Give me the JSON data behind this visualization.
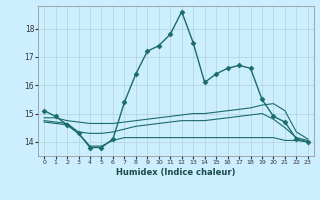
{
  "xlabel": "Humidex (Indice chaleur)",
  "bg_color": "#cceeff",
  "grid_color": "#b0d4d4",
  "line_color": "#1a6b6b",
  "xlim": [
    -0.5,
    23.5
  ],
  "ylim": [
    13.5,
    18.8
  ],
  "yticks": [
    14,
    15,
    16,
    17,
    18
  ],
  "xticks": [
    0,
    1,
    2,
    3,
    4,
    5,
    6,
    7,
    8,
    9,
    10,
    11,
    12,
    13,
    14,
    15,
    16,
    17,
    18,
    19,
    20,
    21,
    22,
    23
  ],
  "series": [
    {
      "x": [
        0,
        1,
        2,
        3,
        4,
        5,
        6,
        7,
        8,
        9,
        10,
        11,
        12,
        13,
        14,
        15,
        16,
        17,
        18,
        19,
        20,
        21,
        22,
        23
      ],
      "y": [
        15.1,
        14.9,
        14.6,
        14.3,
        13.8,
        13.8,
        14.1,
        15.4,
        16.4,
        17.2,
        17.4,
        17.8,
        18.6,
        17.5,
        16.1,
        16.4,
        16.6,
        16.7,
        16.6,
        15.5,
        14.9,
        14.7,
        14.1,
        14.0
      ],
      "marker": "D",
      "markersize": 2.5,
      "linewidth": 1.0
    },
    {
      "x": [
        0,
        1,
        2,
        3,
        4,
        5,
        6,
        7,
        8,
        9,
        10,
        11,
        12,
        13,
        14,
        15,
        16,
        17,
        18,
        19,
        20,
        21,
        22,
        23
      ],
      "y": [
        14.85,
        14.85,
        14.75,
        14.7,
        14.65,
        14.65,
        14.65,
        14.7,
        14.75,
        14.8,
        14.85,
        14.9,
        14.95,
        15.0,
        15.0,
        15.05,
        15.1,
        15.15,
        15.2,
        15.3,
        15.35,
        15.1,
        14.35,
        14.1
      ],
      "marker": null,
      "markersize": 0,
      "linewidth": 0.8
    },
    {
      "x": [
        0,
        1,
        2,
        3,
        4,
        5,
        6,
        7,
        8,
        9,
        10,
        11,
        12,
        13,
        14,
        15,
        16,
        17,
        18,
        19,
        20,
        21,
        22,
        23
      ],
      "y": [
        14.75,
        14.7,
        14.65,
        14.35,
        14.3,
        14.3,
        14.35,
        14.45,
        14.55,
        14.6,
        14.65,
        14.7,
        14.75,
        14.75,
        14.75,
        14.8,
        14.85,
        14.9,
        14.95,
        15.0,
        14.8,
        14.5,
        14.15,
        14.05
      ],
      "marker": null,
      "markersize": 0,
      "linewidth": 0.8
    },
    {
      "x": [
        0,
        1,
        2,
        3,
        4,
        5,
        6,
        7,
        8,
        9,
        10,
        11,
        12,
        13,
        14,
        15,
        16,
        17,
        18,
        19,
        20,
        21,
        22,
        23
      ],
      "y": [
        14.7,
        14.65,
        14.6,
        14.3,
        13.85,
        13.85,
        14.05,
        14.15,
        14.15,
        14.15,
        14.15,
        14.15,
        14.15,
        14.15,
        14.15,
        14.15,
        14.15,
        14.15,
        14.15,
        14.15,
        14.15,
        14.05,
        14.05,
        14.0
      ],
      "marker": null,
      "markersize": 0,
      "linewidth": 0.8
    }
  ]
}
